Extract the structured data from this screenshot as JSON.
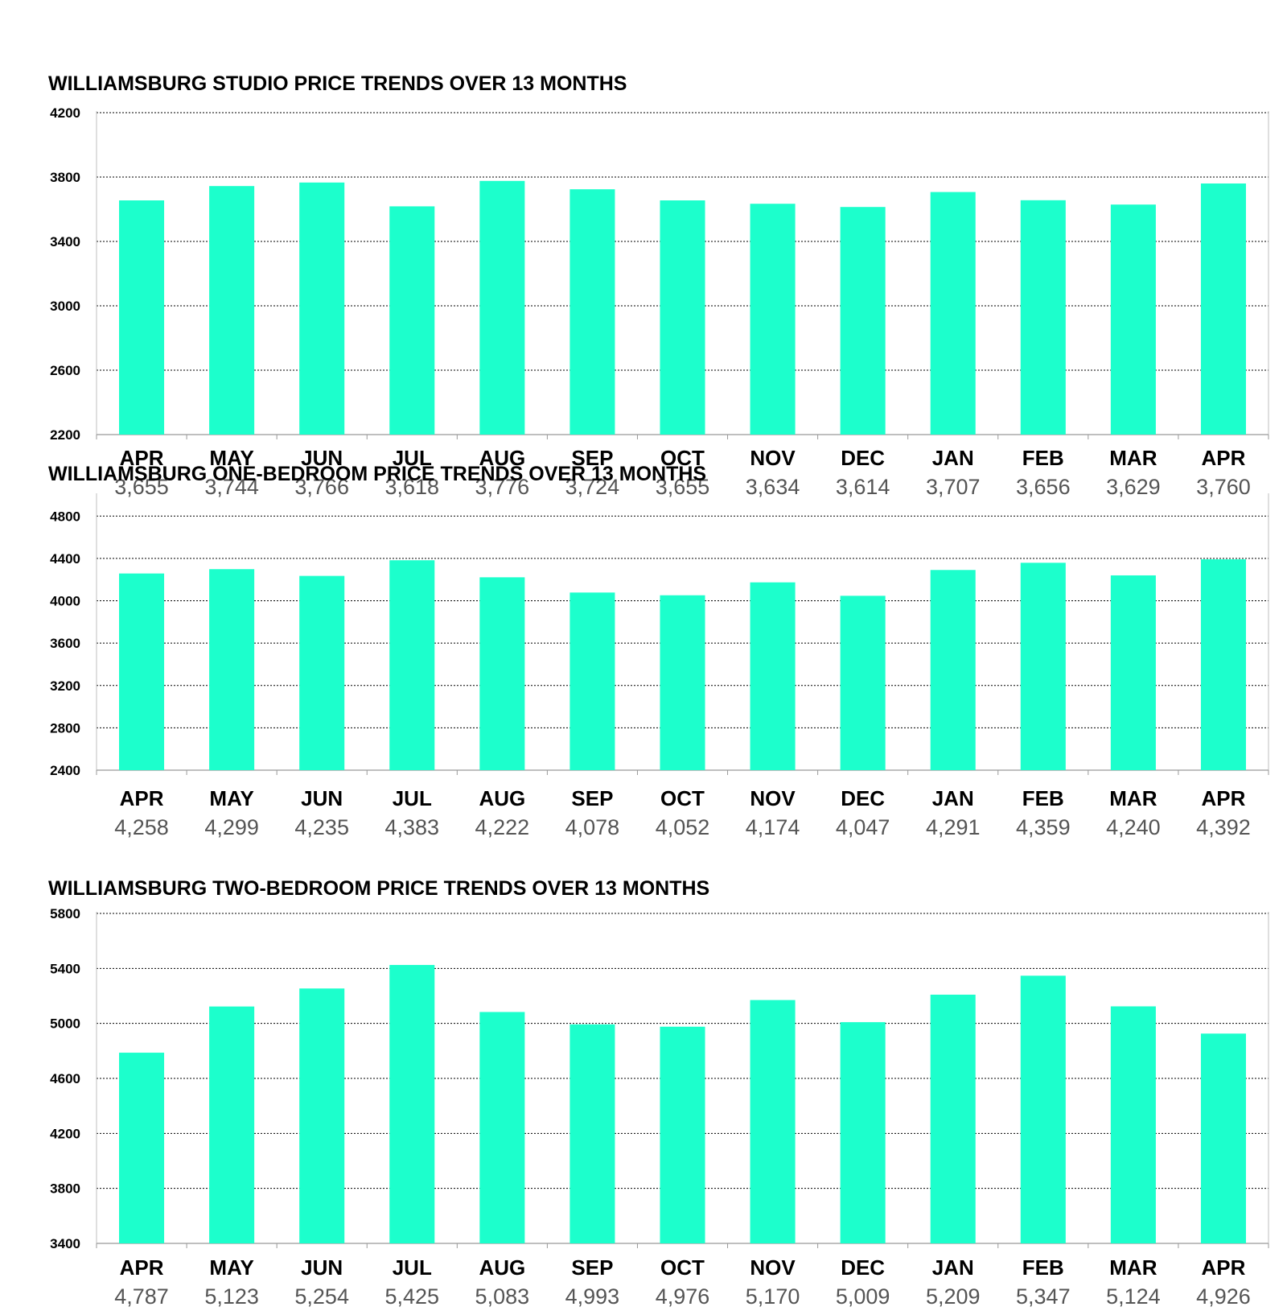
{
  "chart_data": [
    {
      "type": "bar",
      "title": "WILLIAMSBURG STUDIO PRICE TRENDS OVER 13 MONTHS",
      "categories": [
        "APR",
        "MAY",
        "JUN",
        "JUL",
        "AUG",
        "SEP",
        "OCT",
        "NOV",
        "DEC",
        "JAN",
        "FEB",
        "MAR",
        "APR"
      ],
      "values": [
        3655,
        3744,
        3766,
        3618,
        3776,
        3724,
        3655,
        3634,
        3614,
        3707,
        3656,
        3629,
        3760
      ],
      "value_labels": [
        "3,655",
        "3,744",
        "3,766",
        "3,618",
        "3,776",
        "3,724",
        "3,655",
        "3,634",
        "3,614",
        "3,707",
        "3,656",
        "3,629",
        "3,760"
      ],
      "yticks": [
        2200,
        2600,
        3000,
        3400,
        3800,
        4200
      ],
      "ylim": [
        2200,
        4200
      ],
      "grid": true,
      "bar_color": "#1cffcc"
    },
    {
      "type": "bar",
      "title": "WILLIAMSBURG ONE-BEDROOM PRICE TRENDS OVER 13 MONTHS",
      "categories": [
        "APR",
        "MAY",
        "JUN",
        "JUL",
        "AUG",
        "SEP",
        "OCT",
        "NOV",
        "DEC",
        "JAN",
        "FEB",
        "MAR",
        "APR"
      ],
      "values": [
        4258,
        4299,
        4235,
        4383,
        4222,
        4078,
        4052,
        4174,
        4047,
        4291,
        4359,
        4240,
        4392
      ],
      "value_labels": [
        "4,258",
        "4,299",
        "4,235",
        "4,383",
        "4,222",
        "4,078",
        "4,052",
        "4,174",
        "4,047",
        "4,291",
        "4,359",
        "4,240",
        "4,392"
      ],
      "yticks": [
        2400,
        2800,
        3200,
        3600,
        4000,
        4400,
        4800
      ],
      "ylim": [
        2400,
        5000
      ],
      "grid": true,
      "bar_color": "#1cffcc"
    },
    {
      "type": "bar",
      "title": "WILLIAMSBURG TWO-BEDROOM PRICE TRENDS OVER 13 MONTHS",
      "categories": [
        "APR",
        "MAY",
        "JUN",
        "JUL",
        "AUG",
        "SEP",
        "OCT",
        "NOV",
        "DEC",
        "JAN",
        "FEB",
        "MAR",
        "APR"
      ],
      "values": [
        4787,
        5123,
        5254,
        5425,
        5083,
        4993,
        4976,
        5170,
        5009,
        5209,
        5347,
        5124,
        4926
      ],
      "value_labels": [
        "4,787",
        "5,123",
        "5,254",
        "5,425",
        "5,083",
        "4,993",
        "4,976",
        "5,170",
        "5,009",
        "5,209",
        "5,347",
        "5,124",
        "4,926"
      ],
      "yticks": [
        3400,
        3800,
        4200,
        4600,
        5000,
        5400,
        5800
      ],
      "ylim": [
        3400,
        5800
      ],
      "grid": true,
      "bar_color": "#1cffcc"
    }
  ]
}
